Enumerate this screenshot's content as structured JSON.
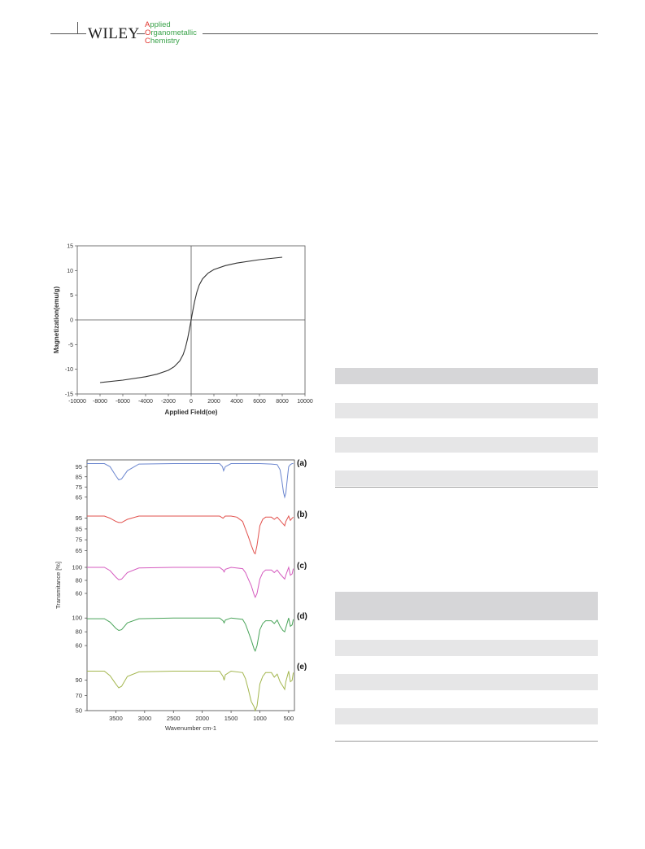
{
  "header": {
    "brand": "WILEY",
    "journal_line1_cap": "A",
    "journal_line1_rest": "pplied",
    "journal_line2_cap": "O",
    "journal_line2_rest": "rganometallic",
    "journal_line3_cap": "C",
    "journal_line3_rest": "hemistry"
  },
  "chart_data": [
    {
      "type": "line",
      "xlabel": "Applied Field(oe)",
      "ylabel": "Magnetization(emu/g)",
      "xlim": [
        -10000,
        10000
      ],
      "ylim": [
        -15,
        15
      ],
      "xticks": [
        "-10000",
        "-8000",
        "-6000",
        "-4000",
        "-2000",
        "0",
        "2000",
        "4000",
        "6000",
        "8000",
        "10000"
      ],
      "yticks": [
        "15",
        "10",
        "5",
        "0",
        "-5",
        "-10",
        "-15"
      ],
      "grid": false,
      "series": [
        {
          "x": [
            -8000,
            -6000,
            -4000,
            -3000,
            -2000,
            -1500,
            -1000,
            -700,
            -500,
            -300,
            -150,
            0,
            150,
            300,
            500,
            700,
            1000,
            1500,
            2000,
            3000,
            4000,
            6000,
            8000
          ],
          "y": [
            -12.7,
            -12.2,
            -11.5,
            -11.0,
            -10.2,
            -9.5,
            -8.3,
            -7.0,
            -5.6,
            -3.7,
            -1.9,
            0,
            1.9,
            3.7,
            5.6,
            7.0,
            8.3,
            9.5,
            10.2,
            11.0,
            11.5,
            12.2,
            12.7
          ]
        }
      ]
    },
    {
      "type": "line",
      "xlabel": "Wavenumber cm-1",
      "ylabel": "Transmitance [%]",
      "xlim": [
        4000,
        400
      ],
      "xticks": [
        "3500",
        "3000",
        "2500",
        "2000",
        "1500",
        "1000",
        "500"
      ],
      "grid": false,
      "panels": [
        {
          "label": "(a)",
          "color": "#6b86cf",
          "yticks": [
            "95",
            "85",
            "75",
            "65"
          ],
          "ylim": [
            60,
            100
          ],
          "x": [
            4000,
            3700,
            3600,
            3500,
            3450,
            3400,
            3300,
            3100,
            2500,
            1700,
            1650,
            1630,
            1600,
            1500,
            1200,
            1000,
            800,
            700,
            650,
            620,
            590,
            570,
            550,
            520,
            500,
            470,
            440,
            420
          ],
          "y": [
            98,
            98,
            95,
            86,
            82,
            83,
            91,
            97.5,
            98,
            98,
            95,
            91,
            95,
            98,
            98,
            98,
            97.5,
            97,
            92,
            82,
            70,
            65,
            69,
            85,
            95,
            97,
            98,
            98
          ]
        },
        {
          "label": "(b)",
          "color": "#e2524e",
          "yticks": [
            "95",
            "85",
            "75",
            "65"
          ],
          "ylim": [
            60,
            100
          ],
          "x": [
            4000,
            3700,
            3600,
            3500,
            3450,
            3400,
            3300,
            3100,
            2500,
            2000,
            1700,
            1640,
            1600,
            1500,
            1400,
            1300,
            1250,
            1200,
            1150,
            1100,
            1080,
            1050,
            1000,
            950,
            900,
            800,
            750,
            700,
            650,
            600,
            570,
            550,
            500,
            470,
            440,
            420
          ],
          "y": [
            97,
            97,
            95,
            92,
            91,
            91,
            94,
            97,
            97,
            97,
            97,
            95,
            97,
            97,
            96,
            92,
            85,
            78,
            70,
            63,
            62,
            70,
            88,
            94,
            96,
            96,
            94,
            96,
            93,
            90,
            88,
            92,
            97,
            93,
            95,
            96
          ]
        },
        {
          "label": "(c)",
          "color": "#d55bbf",
          "yticks": [
            "100",
            "80",
            "60"
          ],
          "ylim": [
            40,
            105
          ],
          "x": [
            4000,
            3700,
            3600,
            3500,
            3450,
            3400,
            3300,
            3100,
            2500,
            1700,
            1640,
            1620,
            1600,
            1500,
            1300,
            1250,
            1200,
            1150,
            1100,
            1080,
            1050,
            1000,
            950,
            900,
            800,
            750,
            700,
            650,
            600,
            570,
            550,
            500,
            470,
            440,
            420
          ],
          "y": [
            100,
            100,
            95,
            85,
            81,
            82,
            92,
            99,
            100,
            100,
            96,
            93,
            97,
            100,
            98,
            92,
            82,
            72,
            58,
            54,
            60,
            82,
            92,
            96,
            96,
            92,
            96,
            90,
            85,
            82,
            88,
            100,
            88,
            90,
            98
          ]
        },
        {
          "label": "(d)",
          "color": "#4aa45a",
          "yticks": [
            "100",
            "80",
            "60"
          ],
          "ylim": [
            40,
            105
          ],
          "x": [
            4000,
            3700,
            3600,
            3500,
            3450,
            3400,
            3300,
            3100,
            2500,
            1700,
            1640,
            1620,
            1600,
            1500,
            1300,
            1250,
            1200,
            1150,
            1100,
            1080,
            1050,
            1000,
            950,
            900,
            800,
            750,
            700,
            650,
            600,
            570,
            550,
            500,
            470,
            440,
            420
          ],
          "y": [
            99,
            99,
            94,
            85,
            82,
            83,
            93,
            99,
            100,
            100,
            96,
            93,
            97,
            100,
            98,
            91,
            80,
            68,
            55,
            52,
            60,
            83,
            92,
            96,
            96,
            92,
            97,
            88,
            82,
            80,
            86,
            100,
            88,
            90,
            98
          ]
        },
        {
          "label": "(e)",
          "color": "#a3b64e",
          "yticks": [
            "90",
            "70",
            "50"
          ],
          "ylim": [
            50,
            110
          ],
          "x": [
            4000,
            3700,
            3600,
            3500,
            3450,
            3400,
            3300,
            3100,
            2500,
            1700,
            1640,
            1620,
            1600,
            1500,
            1300,
            1250,
            1200,
            1150,
            1100,
            1080,
            1050,
            1000,
            950,
            900,
            800,
            750,
            700,
            650,
            600,
            570,
            550,
            500,
            470,
            440,
            420
          ],
          "y": [
            102,
            102,
            96,
            85,
            80,
            82,
            95,
            101,
            102,
            102,
            95,
            90,
            97,
            102,
            100,
            92,
            78,
            62,
            55,
            50,
            56,
            85,
            95,
            100,
            100,
            94,
            98,
            88,
            82,
            78,
            88,
            102,
            88,
            90,
            100
          ]
        }
      ]
    }
  ]
}
